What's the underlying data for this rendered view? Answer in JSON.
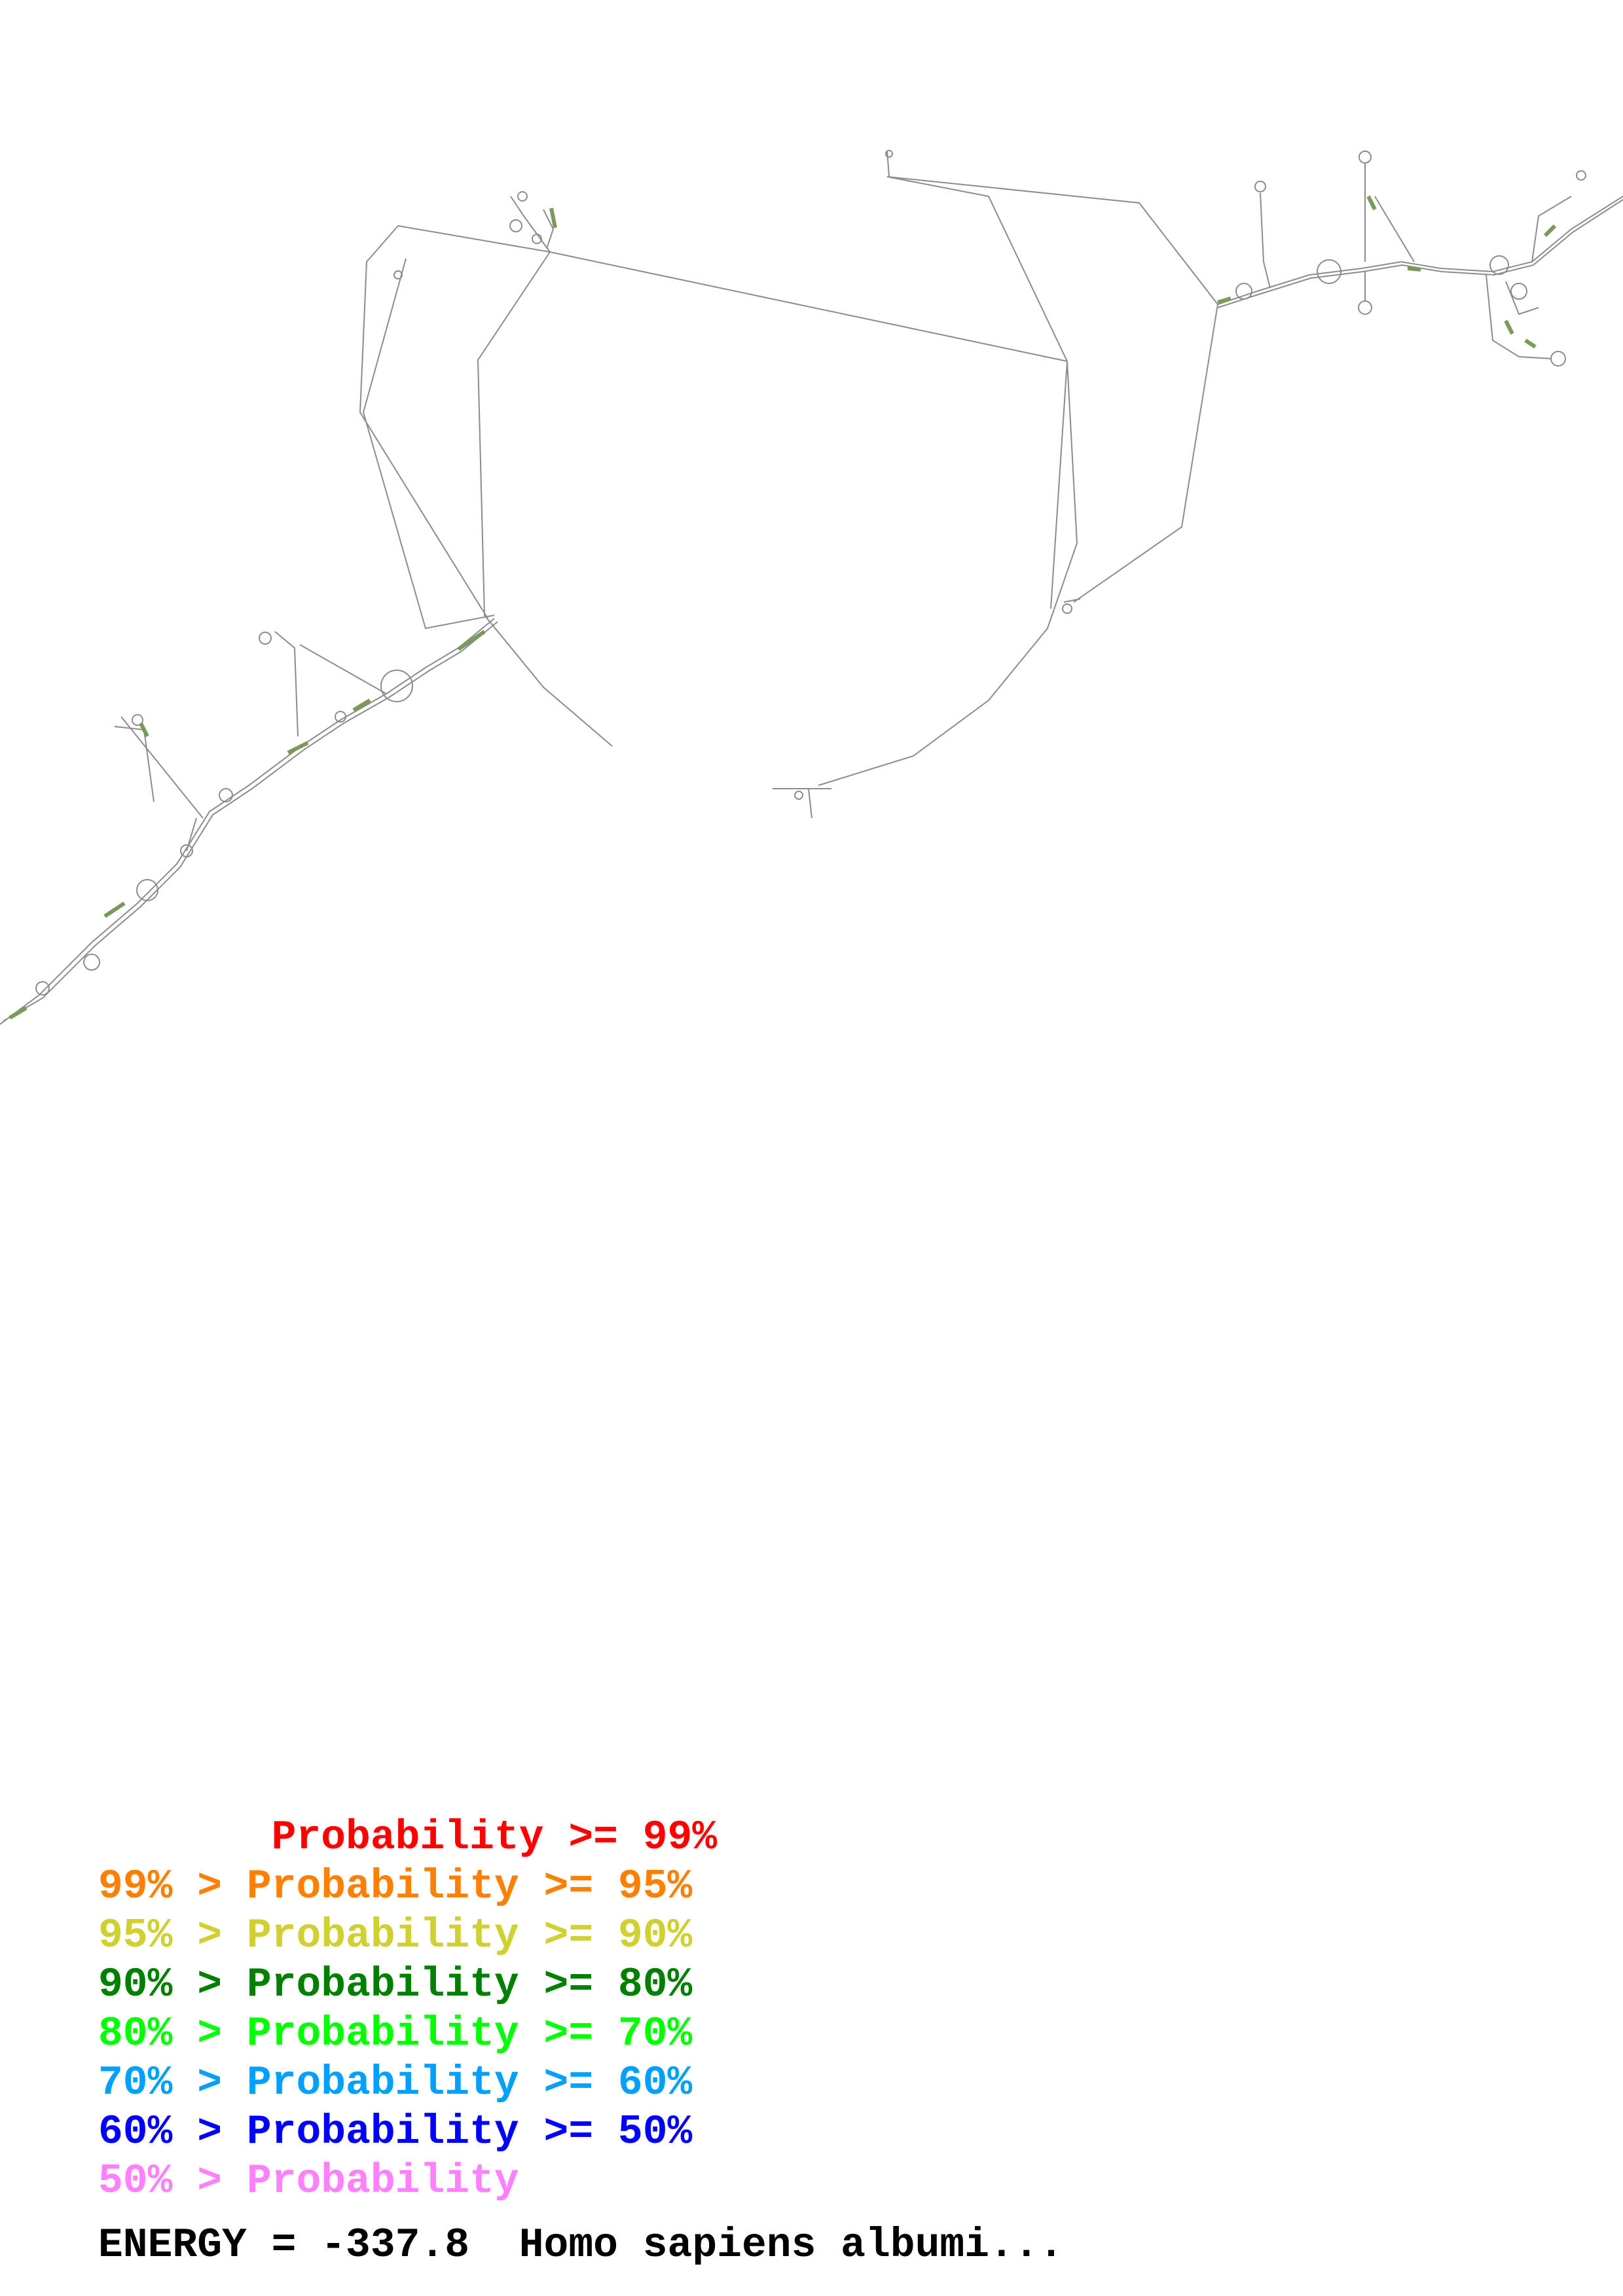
{
  "legend": [
    {
      "text": "       Probability >= 99%",
      "color": "#ff0000"
    },
    {
      "text": "99% > Probability >= 95%",
      "color": "#ff8000"
    },
    {
      "text": "95% > Probability >= 90%",
      "color": "#d0d030"
    },
    {
      "text": "90% > Probability >= 80%",
      "color": "#008000"
    },
    {
      "text": "80% > Probability >= 70%",
      "color": "#00ff00"
    },
    {
      "text": "70% > Probability >= 60%",
      "color": "#00a0ff"
    },
    {
      "text": "60% > Probability >= 50%",
      "color": "#0000ff"
    },
    {
      "text": "50% > Probability",
      "color": "#ff80ff"
    }
  ],
  "energy_label": "ENERGY = -337.8  Homo sapiens albumi...",
  "colors": {
    "backbone": "#8c8c8c",
    "stem_tint": "#7a9a5a"
  }
}
